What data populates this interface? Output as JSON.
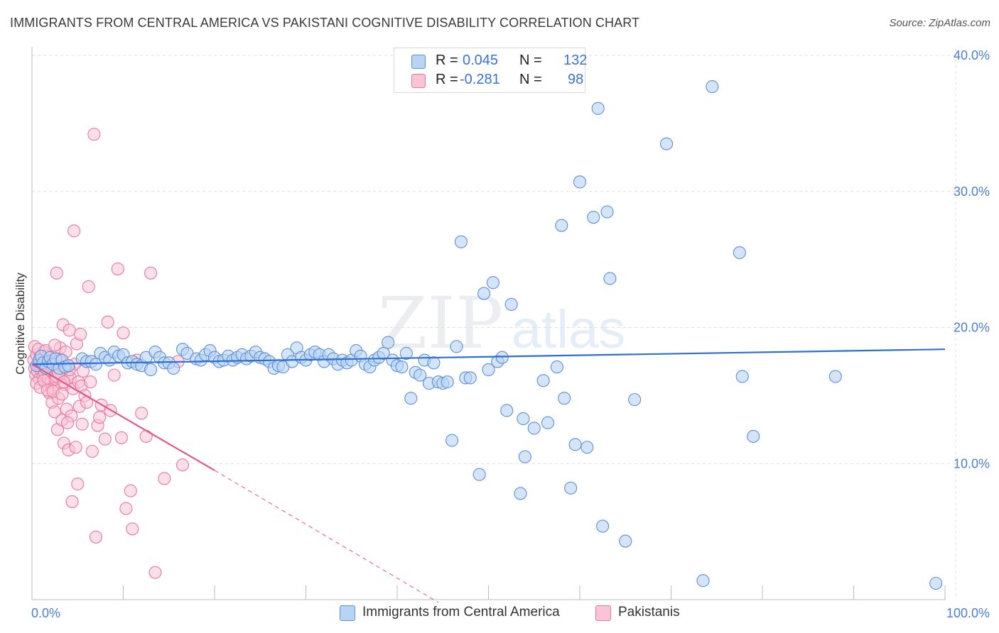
{
  "title": "IMMIGRANTS FROM CENTRAL AMERICA VS PAKISTANI COGNITIVE DISABILITY CORRELATION CHART",
  "source": "Source: ZipAtlas.com",
  "watermark": {
    "zip": "ZIP",
    "atlas": "atlas"
  },
  "legend": {
    "rows": [
      {
        "r_label": "R =",
        "r_value": "0.045",
        "n_label": "N =",
        "n_value": "132"
      },
      {
        "r_label": "R =",
        "r_value": "-0.281",
        "n_label": "N =",
        "n_value": "98"
      }
    ]
  },
  "colors": {
    "blue_fill": "#b9d3f5",
    "blue_stroke": "#5e8fd6",
    "blue_line": "#2e6fcf",
    "pink_fill": "#f9c5d6",
    "pink_stroke": "#e8789e",
    "pink_line": "#e2568a",
    "tick_color": "#4a7fd1",
    "grid": "#dddddd"
  },
  "chart_data": {
    "type": "scatter",
    "title": "IMMIGRANTS FROM CENTRAL AMERICA VS PAKISTANI COGNITIVE DISABILITY CORRELATION CHART",
    "xlabel": "",
    "ylabel": "Cognitive Disability",
    "xlim": [
      0,
      100
    ],
    "ylim": [
      0,
      40
    ],
    "x_tick_labels": [
      "0.0%",
      "100.0%"
    ],
    "y_ticks": [
      10,
      20,
      30,
      40
    ],
    "y_tick_labels": [
      "10.0%",
      "20.0%",
      "30.0%",
      "40.0%"
    ],
    "grid": true,
    "legend_position": "bottom",
    "series": [
      {
        "name": "Immigrants from Central America",
        "color": "#b9d3f5",
        "trend": {
          "x": [
            0,
            100
          ],
          "y": [
            17.3,
            18.4
          ],
          "style": "solid"
        },
        "points": [
          [
            0.5,
            17.2
          ],
          [
            0.8,
            17.6
          ],
          [
            1.0,
            17.9
          ],
          [
            1.2,
            17.4
          ],
          [
            1.5,
            17.0
          ],
          [
            1.8,
            17.5
          ],
          [
            2.0,
            17.8
          ],
          [
            2.3,
            17.3
          ],
          [
            2.6,
            17.7
          ],
          [
            3.0,
            17.0
          ],
          [
            3.3,
            17.6
          ],
          [
            3.6,
            17.1
          ],
          [
            4.0,
            17.2
          ],
          [
            5.5,
            17.7
          ],
          [
            6.0,
            17.5
          ],
          [
            6.5,
            17.5
          ],
          [
            7.0,
            17.3
          ],
          [
            7.5,
            18.1
          ],
          [
            8.0,
            17.8
          ],
          [
            8.5,
            17.6
          ],
          [
            9.0,
            18.2
          ],
          [
            9.5,
            17.9
          ],
          [
            10.0,
            18.0
          ],
          [
            10.5,
            17.4
          ],
          [
            11.0,
            17.5
          ],
          [
            11.5,
            17.3
          ],
          [
            12.0,
            17.2
          ],
          [
            12.5,
            17.8
          ],
          [
            13.0,
            16.9
          ],
          [
            13.5,
            18.2
          ],
          [
            14.0,
            17.8
          ],
          [
            14.5,
            17.4
          ],
          [
            15.0,
            17.4
          ],
          [
            15.5,
            17.0
          ],
          [
            16.5,
            18.4
          ],
          [
            17.0,
            18.1
          ],
          [
            18.0,
            17.7
          ],
          [
            18.5,
            17.6
          ],
          [
            19.0,
            18.0
          ],
          [
            19.5,
            18.3
          ],
          [
            20.0,
            17.8
          ],
          [
            20.5,
            17.5
          ],
          [
            21.0,
            17.6
          ],
          [
            21.5,
            17.9
          ],
          [
            22.0,
            17.6
          ],
          [
            22.5,
            17.8
          ],
          [
            23.0,
            18.0
          ],
          [
            23.5,
            17.7
          ],
          [
            24.0,
            17.9
          ],
          [
            24.5,
            18.2
          ],
          [
            25.0,
            17.8
          ],
          [
            25.5,
            17.7
          ],
          [
            26.0,
            17.5
          ],
          [
            26.5,
            17.0
          ],
          [
            27.0,
            17.2
          ],
          [
            27.5,
            17.1
          ],
          [
            28.0,
            18.0
          ],
          [
            28.5,
            17.5
          ],
          [
            29.0,
            18.5
          ],
          [
            29.5,
            17.8
          ],
          [
            30.0,
            17.6
          ],
          [
            30.5,
            18.0
          ],
          [
            31.0,
            18.2
          ],
          [
            31.5,
            18.0
          ],
          [
            32.0,
            17.5
          ],
          [
            32.5,
            18.0
          ],
          [
            33.0,
            17.7
          ],
          [
            33.5,
            17.3
          ],
          [
            34.0,
            17.6
          ],
          [
            34.5,
            17.4
          ],
          [
            35.0,
            17.6
          ],
          [
            35.5,
            18.3
          ],
          [
            36.0,
            17.9
          ],
          [
            36.5,
            17.3
          ],
          [
            37.0,
            17.1
          ],
          [
            37.5,
            17.6
          ],
          [
            38.0,
            17.8
          ],
          [
            38.5,
            18.1
          ],
          [
            39.0,
            18.9
          ],
          [
            39.5,
            17.6
          ],
          [
            40.0,
            17.2
          ],
          [
            40.5,
            17.1
          ],
          [
            41.0,
            18.1
          ],
          [
            41.5,
            14.8
          ],
          [
            42.0,
            16.7
          ],
          [
            42.5,
            16.5
          ],
          [
            43.0,
            17.6
          ],
          [
            43.5,
            15.9
          ],
          [
            44.0,
            17.4
          ],
          [
            44.5,
            16.0
          ],
          [
            45.0,
            15.9
          ],
          [
            45.5,
            16.0
          ],
          [
            46.0,
            11.7
          ],
          [
            46.5,
            18.6
          ],
          [
            47.0,
            26.3
          ],
          [
            47.5,
            16.3
          ],
          [
            48.0,
            16.3
          ],
          [
            49.0,
            9.2
          ],
          [
            49.5,
            22.5
          ],
          [
            50.0,
            16.9
          ],
          [
            50.5,
            23.3
          ],
          [
            51.0,
            17.5
          ],
          [
            51.5,
            17.8
          ],
          [
            52.0,
            13.9
          ],
          [
            52.5,
            21.7
          ],
          [
            53.5,
            7.8
          ],
          [
            53.8,
            13.3
          ],
          [
            54.0,
            10.5
          ],
          [
            55.0,
            12.6
          ],
          [
            56.0,
            16.1
          ],
          [
            56.5,
            13.0
          ],
          [
            57.5,
            17.1
          ],
          [
            58.0,
            27.5
          ],
          [
            58.3,
            14.8
          ],
          [
            59.0,
            8.2
          ],
          [
            59.5,
            11.4
          ],
          [
            60.0,
            30.7
          ],
          [
            60.8,
            11.2
          ],
          [
            61.5,
            28.1
          ],
          [
            62.0,
            36.1
          ],
          [
            62.5,
            5.4
          ],
          [
            63.0,
            28.5
          ],
          [
            63.3,
            23.6
          ],
          [
            65.0,
            4.3
          ],
          [
            66.0,
            14.7
          ],
          [
            69.5,
            33.5
          ],
          [
            73.5,
            1.4
          ],
          [
            74.5,
            37.7
          ],
          [
            77.5,
            25.5
          ],
          [
            77.8,
            16.4
          ],
          [
            79.0,
            12.0
          ],
          [
            88.0,
            16.4
          ],
          [
            99.0,
            1.2
          ]
        ]
      },
      {
        "name": "Pakistanis",
        "color": "#f9c5d6",
        "trend": {
          "x": [
            0,
            20
          ],
          "y": [
            17.3,
            9.5
          ],
          "style": "solid",
          "extension": {
            "x": [
              20,
              44.5
            ],
            "y": [
              9.5,
              -0.2
            ],
            "style": "dashed"
          }
        },
        "points": [
          [
            0.2,
            17.6
          ],
          [
            0.3,
            17.0
          ],
          [
            0.4,
            16.5
          ],
          [
            0.5,
            18.0
          ],
          [
            0.6,
            16.8
          ],
          [
            0.7,
            17.3
          ],
          [
            0.8,
            16.2
          ],
          [
            0.9,
            17.8
          ],
          [
            1.0,
            16.9
          ],
          [
            1.1,
            17.5
          ],
          [
            1.2,
            16.4
          ],
          [
            1.3,
            18.2
          ],
          [
            1.4,
            16.7
          ],
          [
            1.5,
            17.1
          ],
          [
            1.6,
            15.8
          ],
          [
            1.7,
            17.9
          ],
          [
            1.8,
            16.3
          ],
          [
            1.9,
            15.2
          ],
          [
            2.0,
            17.4
          ],
          [
            2.1,
            16.0
          ],
          [
            2.2,
            14.5
          ],
          [
            2.3,
            17.0
          ],
          [
            2.4,
            15.5
          ],
          [
            2.5,
            13.8
          ],
          [
            2.6,
            16.2
          ],
          [
            2.7,
            24.0
          ],
          [
            2.8,
            12.5
          ],
          [
            2.9,
            14.8
          ],
          [
            3.0,
            17.7
          ],
          [
            3.1,
            18.5
          ],
          [
            3.2,
            16.6
          ],
          [
            3.3,
            13.2
          ],
          [
            3.4,
            20.2
          ],
          [
            3.5,
            11.5
          ],
          [
            3.6,
            15.8
          ],
          [
            3.7,
            18.2
          ],
          [
            3.8,
            14.0
          ],
          [
            3.9,
            16.5
          ],
          [
            4.0,
            11.0
          ],
          [
            4.1,
            19.8
          ],
          [
            4.2,
            16.3
          ],
          [
            4.3,
            13.5
          ],
          [
            4.4,
            7.2
          ],
          [
            4.5,
            15.5
          ],
          [
            4.6,
            27.1
          ],
          [
            4.7,
            17.3
          ],
          [
            4.8,
            11.2
          ],
          [
            4.9,
            18.8
          ],
          [
            5.0,
            8.5
          ],
          [
            5.1,
            16.0
          ],
          [
            5.2,
            14.2
          ],
          [
            5.3,
            19.5
          ],
          [
            5.4,
            15.7
          ],
          [
            5.5,
            12.9
          ],
          [
            5.6,
            16.8
          ],
          [
            5.8,
            15.0
          ],
          [
            6.0,
            14.5
          ],
          [
            6.2,
            23.0
          ],
          [
            6.4,
            16.0
          ],
          [
            6.6,
            10.9
          ],
          [
            6.8,
            34.2
          ],
          [
            7.0,
            4.6
          ],
          [
            7.2,
            12.8
          ],
          [
            7.4,
            13.4
          ],
          [
            7.6,
            14.3
          ],
          [
            8.0,
            11.8
          ],
          [
            8.3,
            20.4
          ],
          [
            8.6,
            13.9
          ],
          [
            9.0,
            16.5
          ],
          [
            9.4,
            24.3
          ],
          [
            9.8,
            11.9
          ],
          [
            10.0,
            19.6
          ],
          [
            10.3,
            6.7
          ],
          [
            10.8,
            8.0
          ],
          [
            11.0,
            5.2
          ],
          [
            11.5,
            17.6
          ],
          [
            12.0,
            13.7
          ],
          [
            12.5,
            12.0
          ],
          [
            13.0,
            24.0
          ],
          [
            13.5,
            2.0
          ],
          [
            14.5,
            8.9
          ],
          [
            16.0,
            17.5
          ],
          [
            16.5,
            9.9
          ],
          [
            0.3,
            18.6
          ],
          [
            0.5,
            15.9
          ],
          [
            0.7,
            18.4
          ],
          [
            0.9,
            15.6
          ],
          [
            1.1,
            17.7
          ],
          [
            1.3,
            16.1
          ],
          [
            1.5,
            18.3
          ],
          [
            1.7,
            15.4
          ],
          [
            1.9,
            16.9
          ],
          [
            2.1,
            17.2
          ],
          [
            2.3,
            15.3
          ],
          [
            2.5,
            18.7
          ],
          [
            2.7,
            16.4
          ],
          [
            2.9,
            16.7
          ],
          [
            3.1,
            17.6
          ],
          [
            3.3,
            15.1
          ],
          [
            3.5,
            16.0
          ],
          [
            3.7,
            17.1
          ],
          [
            3.9,
            13.0
          ],
          [
            4.1,
            16.9
          ]
        ]
      }
    ]
  },
  "bottom_legend": [
    {
      "label": "Immigrants from Central America"
    },
    {
      "label": "Pakistanis"
    }
  ]
}
